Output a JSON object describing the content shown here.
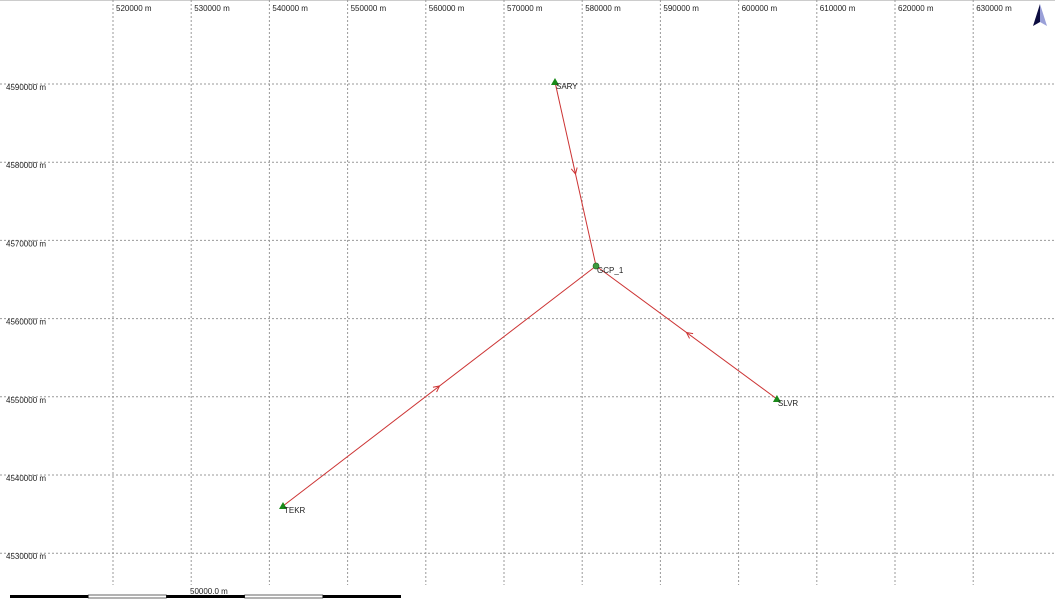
{
  "grid": {
    "unit": "m",
    "easting_ticks": [
      520000,
      530000,
      540000,
      550000,
      560000,
      570000,
      580000,
      590000,
      600000,
      610000,
      620000,
      630000
    ],
    "easting_labels": [
      "520000 m",
      "530000 m",
      "540000 m",
      "550000 m",
      "560000 m",
      "570000 m",
      "580000 m",
      "590000 m",
      "600000 m",
      "610000 m",
      "620000 m",
      "630000 m"
    ],
    "northing_ticks": [
      4590000,
      4580000,
      4570000,
      4560000,
      4550000,
      4540000,
      4530000
    ],
    "northing_labels": [
      "4590000 m",
      "4580000 m",
      "4570000 m",
      "4560000 m",
      "4550000 m",
      "4540000 m",
      "4530000 m"
    ],
    "line_color": "#999999"
  },
  "stations": [
    {
      "name": "SARY",
      "easting": 576520,
      "northing": 4590250,
      "type": "reference",
      "color": "#1a8a1a"
    },
    {
      "name": "GCP_1",
      "easting": 581770,
      "northing": 4566730,
      "type": "rover",
      "color": "#3c9a3c"
    },
    {
      "name": "SLVR",
      "easting": 604900,
      "northing": 4549720,
      "type": "reference",
      "color": "#1a8a1a"
    },
    {
      "name": "TEKR",
      "easting": 541740,
      "northing": 4536040,
      "type": "reference",
      "color": "#1a8a1a"
    }
  ],
  "baselines": [
    {
      "from": "SARY",
      "to": "GCP_1"
    },
    {
      "from": "SLVR",
      "to": "GCP_1"
    },
    {
      "from": "TEKR",
      "to": "GCP_1"
    }
  ],
  "baseline_color": "#cc3333",
  "scale_bar": {
    "label": "50000.0 m",
    "length_m": 50000,
    "segments": 5
  },
  "north_arrow": {
    "icon": "north-arrow-icon"
  }
}
